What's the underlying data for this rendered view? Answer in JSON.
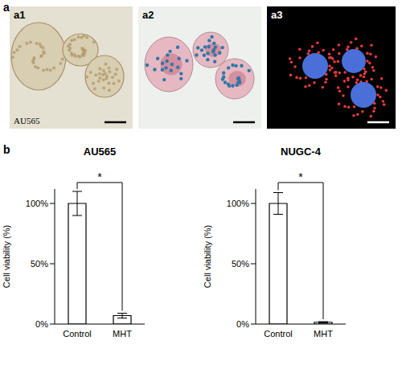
{
  "figure": {
    "panel_a": {
      "label": "a",
      "images": [
        {
          "label": "a1",
          "caption": "AU565"
        },
        {
          "label": "a2"
        },
        {
          "label": "a3"
        }
      ]
    },
    "panel_b": {
      "label": "b"
    }
  },
  "chart_data": [
    {
      "type": "bar",
      "title": "AU565",
      "y_label": "Cell viability (%)",
      "categories": [
        "Control",
        "MHT"
      ],
      "values": [
        100,
        7
      ],
      "errors": [
        10,
        2
      ],
      "color": "#ffffff",
      "ylim": [
        0,
        112
      ],
      "yticks": [
        {
          "value": 0,
          "label": "0%"
        },
        {
          "value": 50,
          "label": "50%"
        },
        {
          "value": 100,
          "label": "100%"
        }
      ],
      "annotation": "*"
    },
    {
      "type": "bar",
      "title": "NUGC-4",
      "y_label": "Cell viability (%)",
      "categories": [
        "Control",
        "MHT"
      ],
      "values": [
        100,
        1.5
      ],
      "errors": [
        9,
        0.5
      ],
      "color": "#ffffff",
      "ylim": [
        0,
        112
      ],
      "yticks": [
        {
          "value": 0,
          "label": "0%"
        },
        {
          "value": 50,
          "label": "50%"
        },
        {
          "value": 100,
          "label": "100%"
        }
      ],
      "annotation": "*"
    }
  ]
}
